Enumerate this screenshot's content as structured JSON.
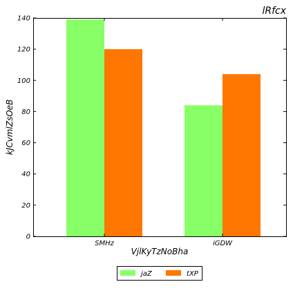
{
  "chart_data": {
    "type": "bar",
    "title": "lRfcx",
    "xlabel": "VjlKyTzNoBha",
    "ylabel": "kJCvmlZsOeB",
    "categories": [
      "SMHz",
      "iGDW"
    ],
    "series": [
      {
        "name": "jaZ",
        "color": "#88ff66",
        "values": [
          139,
          84
        ]
      },
      {
        "name": "tXP",
        "color": "#ff7700",
        "values": [
          120,
          104
        ]
      }
    ],
    "ylim": [
      0,
      140
    ],
    "yticks": [
      0,
      20,
      40,
      60,
      80,
      100,
      120,
      140
    ],
    "grid": false,
    "legend_position": "bottom-center"
  }
}
